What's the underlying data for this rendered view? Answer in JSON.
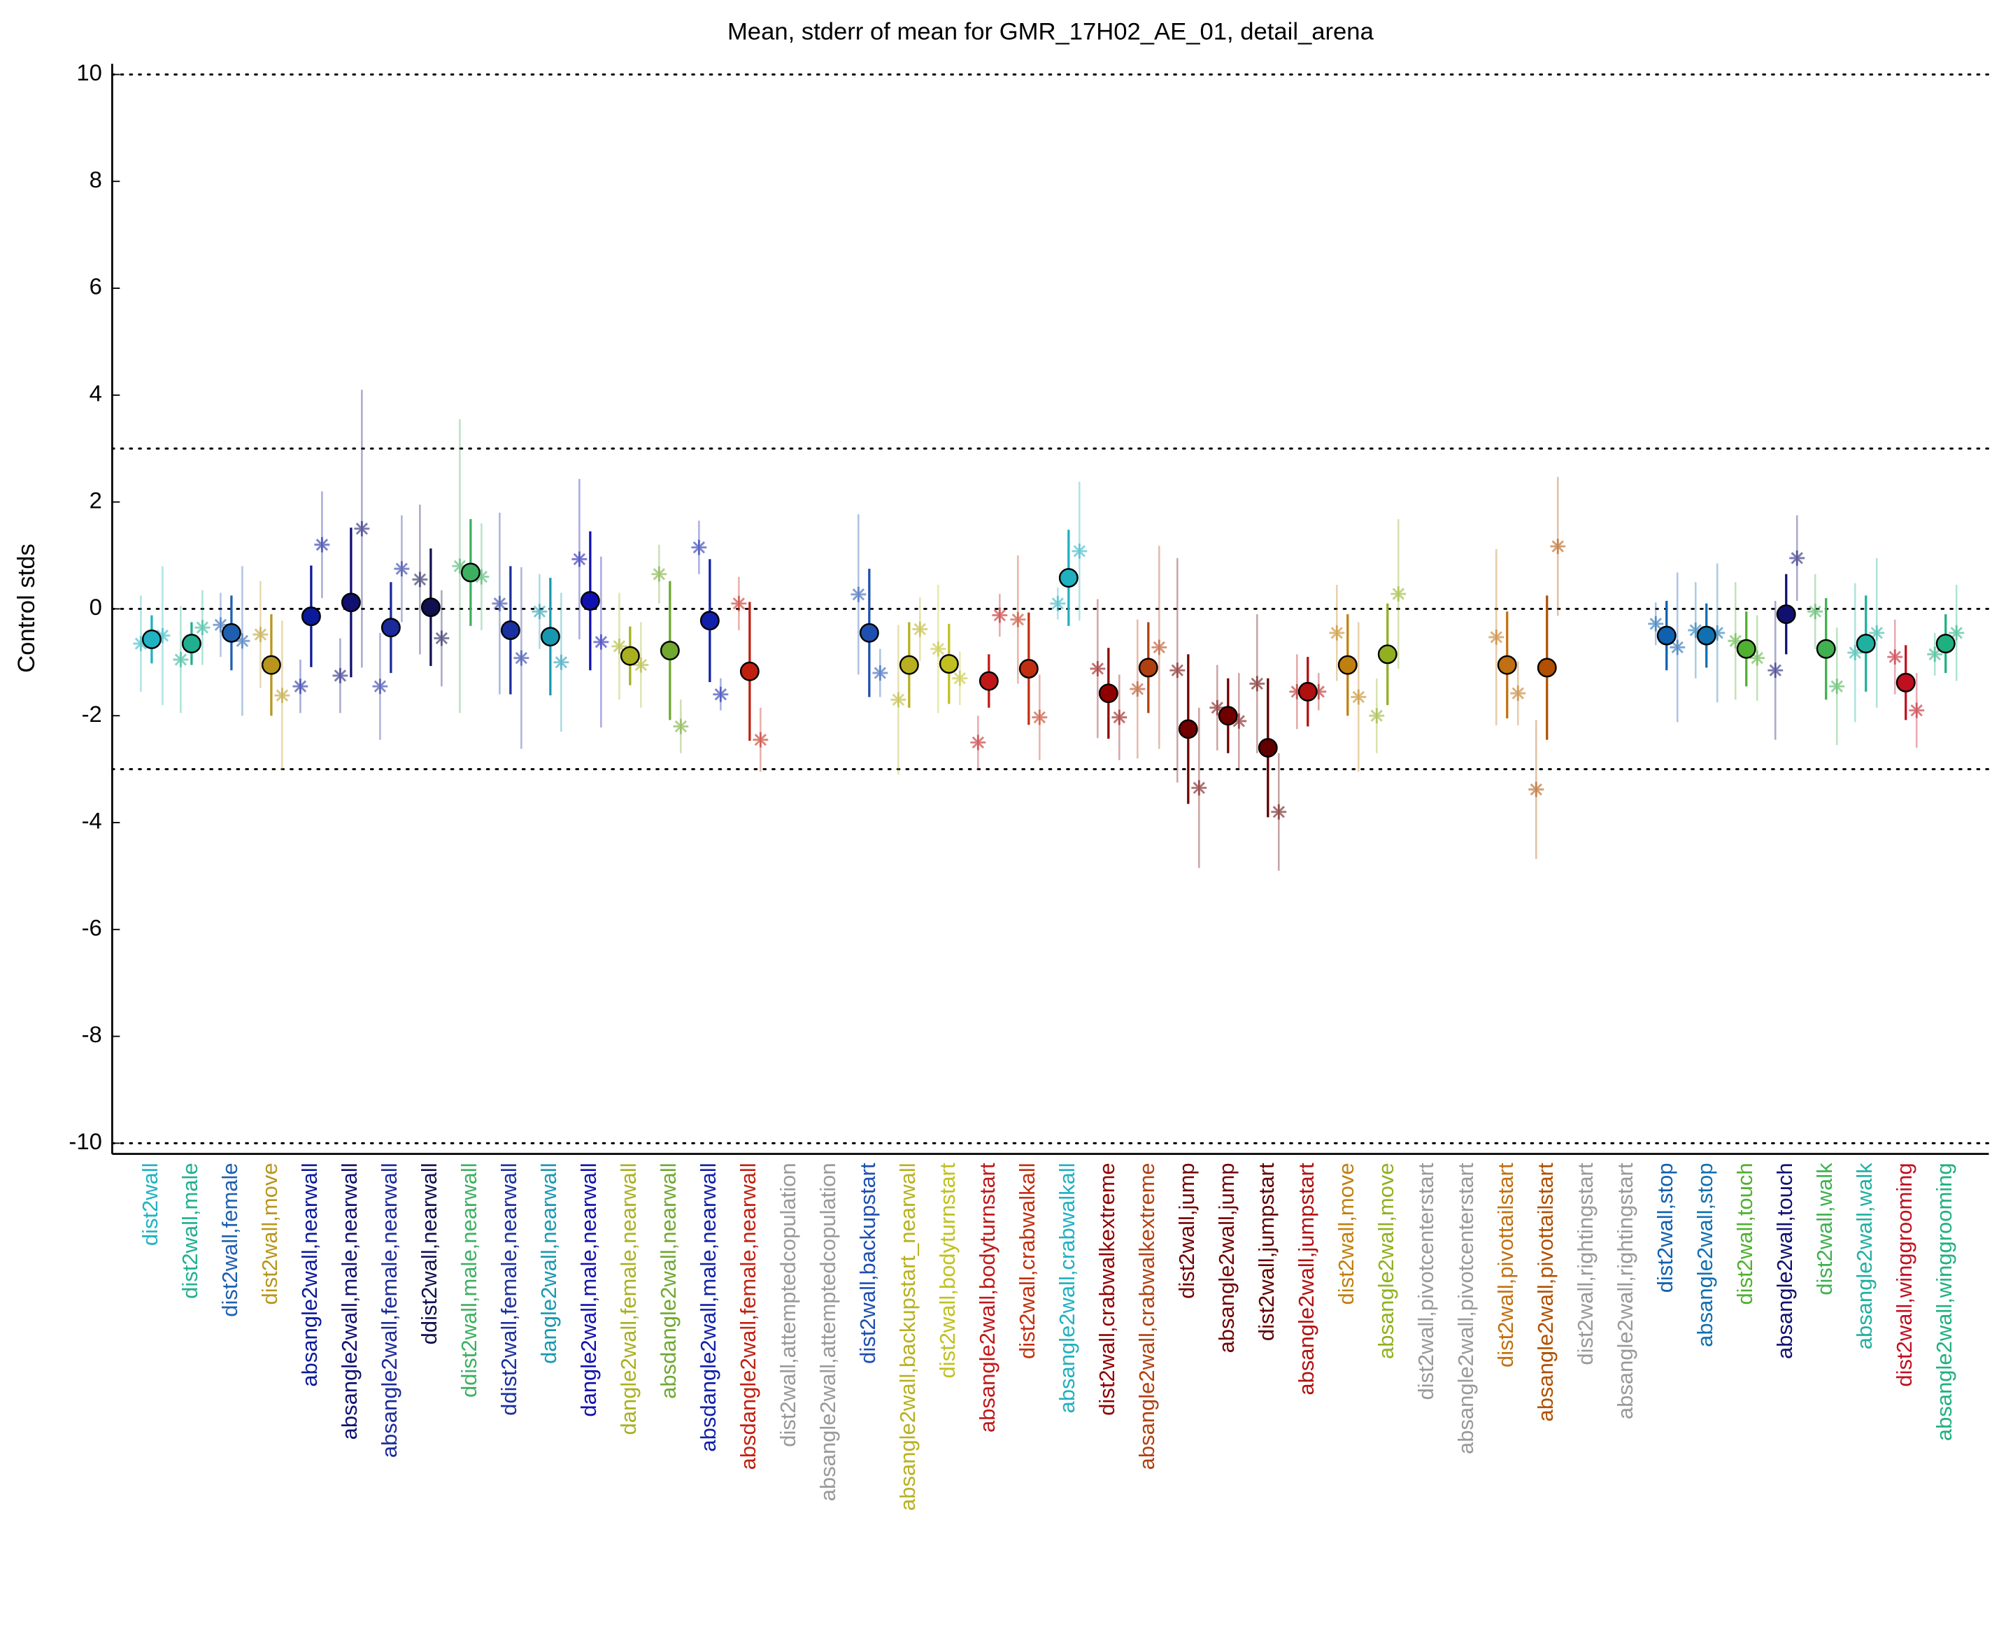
{
  "chart_data": {
    "type": "errorbar",
    "title": "Mean, stderr of mean for GMR_17H02_AE_01, detail_arena",
    "ylabel": "Control stds",
    "categories": [
      "dist2wall",
      "dist2wall,male",
      "dist2wall,female",
      "dist2wall,move",
      "absangle2wall,nearwall",
      "absangle2wall,male,nearwall",
      "absangle2wall,female,nearwall",
      "ddist2wall,nearwall",
      "ddist2wall,male,nearwall",
      "ddist2wall,female,nearwall",
      "dangle2wall,nearwall",
      "dangle2wall,male,nearwall",
      "dangle2wall,female,nearwall",
      "absdangle2wall,nearwall",
      "absdangle2wall,male,nearwall",
      "absdangle2wall,female,nearwall",
      "dist2wall,attemptedcopulation",
      "absangle2wall,attemptedcopulation",
      "dist2wall,backupstart",
      "absangle2wall,backupstart_nearwall",
      "dist2wall,bodyturnstart",
      "absangle2wall,bodyturnstart",
      "dist2wall,crabwalkall",
      "absangle2wall,crabwalkall",
      "dist2wall,crabwalkextreme",
      "absangle2wall,crabwalkextreme",
      "dist2wall,jump",
      "absangle2wall,jump",
      "dist2wall,jumpstart",
      "absangle2wall,jumpstart",
      "dist2wall,move",
      "absangle2wall,move",
      "dist2wall,pivotcenterstart",
      "absangle2wall,pivotcenterstart",
      "dist2wall,pivottailstart",
      "absangle2wall,pivottailstart",
      "dist2wall,rightingstart",
      "absangle2wall,rightingstart",
      "dist2wall,stop",
      "absangle2wall,stop",
      "dist2wall,touch",
      "absangle2wall,touch",
      "dist2wall,walk",
      "absangle2wall,walk",
      "dist2wall,winggrooming",
      "absangle2wall,winggrooming"
    ],
    "colors": [
      "#20b2c0",
      "#20b090",
      "#1f5fb0",
      "#b8961e",
      "#0a1a9a",
      "#101070",
      "#1a2a9a",
      "#101050",
      "#3cb060",
      "#1a30a0",
      "#1898b0",
      "#1010b0",
      "#a8b020",
      "#70a830",
      "#1020a8",
      "#c02010",
      "#999999",
      "#999999",
      "#1f4fb0",
      "#b8b020",
      "#c0c020",
      "#c01818",
      "#c03010",
      "#20b0c0",
      "#900000",
      "#b04010",
      "#700000",
      "#700000",
      "#600000",
      "#b01010",
      "#c08010",
      "#90b020",
      "#999999",
      "#999999",
      "#c07010",
      "#b05000",
      "#999999",
      "#999999",
      "#1060b0",
      "#1070b0",
      "#50b030",
      "#101070",
      "#40b050",
      "#20b0a0",
      "#c01020",
      "#20b080"
    ],
    "means": [
      -0.57,
      -0.65,
      -0.45,
      -1.05,
      -0.14,
      0.12,
      -0.35,
      0.03,
      0.68,
      -0.4,
      -0.52,
      0.15,
      -0.88,
      -0.78,
      -0.22,
      -1.17,
      null,
      null,
      -0.45,
      -1.05,
      -1.03,
      -1.35,
      -1.12,
      0.58,
      -1.58,
      -1.1,
      -2.25,
      -2.0,
      -2.6,
      -1.55,
      -1.05,
      -0.85,
      null,
      null,
      -1.05,
      -1.1,
      null,
      null,
      -0.5,
      -0.5,
      -0.75,
      -0.1,
      -0.75,
      -0.65,
      -1.38,
      -0.65
    ],
    "errors": [
      0.45,
      0.4,
      0.7,
      0.95,
      0.95,
      1.4,
      0.85,
      1.1,
      1.0,
      1.2,
      1.1,
      1.3,
      0.55,
      1.3,
      1.15,
      1.3,
      null,
      null,
      1.2,
      0.8,
      0.75,
      0.5,
      1.05,
      0.9,
      0.85,
      0.85,
      1.4,
      0.7,
      1.3,
      0.65,
      0.95,
      0.95,
      null,
      null,
      1.0,
      1.35,
      null,
      null,
      0.65,
      0.6,
      0.7,
      0.75,
      0.95,
      0.9,
      0.7,
      0.55
    ],
    "left": [
      -0.65,
      -0.95,
      -0.3,
      -0.48,
      -1.45,
      -1.25,
      -1.45,
      0.55,
      0.8,
      0.1,
      -0.05,
      0.93,
      -0.7,
      0.65,
      1.15,
      0.1,
      null,
      null,
      0.27,
      -1.7,
      -0.75,
      -2.5,
      -0.2,
      0.1,
      -1.12,
      -1.5,
      -1.15,
      -1.85,
      -1.4,
      -1.55,
      -0.45,
      -2.0,
      null,
      null,
      -0.53,
      -3.38,
      null,
      null,
      -0.28,
      -0.4,
      -0.6,
      -1.15,
      -0.05,
      -0.82,
      -0.9,
      -0.85
    ],
    "left_errors": [
      0.9,
      1.0,
      0.6,
      1.0,
      0.5,
      0.7,
      1.0,
      1.4,
      2.75,
      1.7,
      0.7,
      1.5,
      1.0,
      0.55,
      0.5,
      0.5,
      null,
      null,
      1.5,
      1.4,
      1.2,
      0.5,
      1.2,
      0.3,
      1.3,
      1.3,
      2.1,
      0.8,
      1.3,
      0.7,
      0.9,
      0.7,
      null,
      null,
      1.65,
      1.3,
      null,
      null,
      0.4,
      0.9,
      1.1,
      1.3,
      0.7,
      1.3,
      0.7,
      0.4
    ],
    "right": [
      -0.5,
      -0.35,
      -0.6,
      -1.62,
      1.2,
      1.5,
      0.75,
      -0.55,
      0.6,
      -0.92,
      -1.0,
      -0.62,
      -1.05,
      -2.2,
      -1.6,
      -2.45,
      null,
      null,
      -1.2,
      -0.38,
      -1.3,
      -0.12,
      -2.03,
      1.08,
      -2.03,
      -0.72,
      -3.35,
      -2.1,
      -3.8,
      -1.55,
      -1.65,
      0.28,
      null,
      null,
      -1.58,
      1.17,
      null,
      null,
      -0.72,
      -0.45,
      -0.92,
      0.95,
      -1.45,
      -0.45,
      -1.9,
      -0.45
    ],
    "right_errors": [
      1.3,
      0.7,
      1.4,
      1.4,
      1.0,
      2.6,
      1.0,
      0.9,
      1.0,
      1.7,
      1.3,
      1.6,
      0.8,
      0.5,
      0.3,
      0.6,
      null,
      null,
      0.45,
      0.6,
      0.5,
      0.4,
      0.8,
      1.3,
      0.8,
      1.9,
      1.5,
      0.9,
      1.1,
      0.35,
      1.4,
      1.4,
      null,
      null,
      0.6,
      1.3,
      null,
      null,
      1.4,
      1.3,
      0.8,
      0.8,
      1.1,
      1.4,
      0.7,
      0.9
    ],
    "ylim": [
      -10.2,
      10.2
    ],
    "yticks": [
      -10,
      -8,
      -6,
      -4,
      -2,
      0,
      2,
      4,
      6,
      8,
      10
    ],
    "hlines": [
      -10,
      -3,
      0,
      3,
      10
    ]
  }
}
